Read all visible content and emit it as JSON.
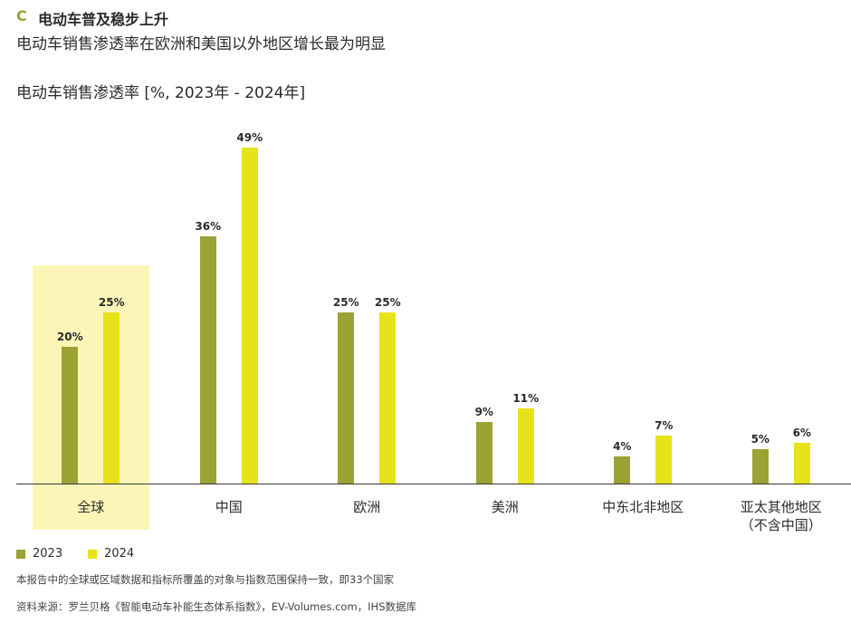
{
  "header": {
    "letter": "C",
    "title": "电动车普及稳步上升",
    "subtitle": "电动车销售渗透率在欧洲和美国以外地区增长最为明显",
    "unit_label": "电动车销售渗透率 [%, 2023年 - 2024年]"
  },
  "colors": {
    "series_2023": "#9ca233",
    "series_2024": "#e6e31a",
    "highlight": "#fbf6b8"
  },
  "legend": [
    {
      "label": "2023",
      "color": "#9ca233"
    },
    {
      "label": "2024",
      "color": "#e6e31a"
    }
  ],
  "footer": {
    "note": "本报告中的全球或区域数据和指标所覆盖的对象与指数范围保持一致，即33个国家",
    "source": "资料来源：罗兰贝格《智能电动车补能生态体系指数》，EV-Volumes.com，IHS数据库"
  },
  "chart_data": {
    "type": "bar",
    "title": "电动车销售渗透率",
    "ylabel": "%",
    "categories": [
      "全球",
      "中国",
      "欧洲",
      "美洲",
      "中东北非地区",
      "亚太其他地区（不含中国）"
    ],
    "series": [
      {
        "name": "2023",
        "values": [
          20,
          36,
          25,
          9,
          4,
          5
        ]
      },
      {
        "name": "2024",
        "values": [
          25,
          49,
          25,
          11,
          7,
          6
        ]
      }
    ],
    "value_labels": {
      "2023": [
        "20%",
        "36%",
        "25%",
        "9%",
        "4%",
        "5%"
      ],
      "2024": [
        "25%",
        "49%",
        "25%",
        "11%",
        "7%",
        "6%"
      ]
    },
    "highlighted_category": "全球",
    "grid": false,
    "legend_position": "bottom-left",
    "ylim": [
      0,
      50
    ]
  }
}
